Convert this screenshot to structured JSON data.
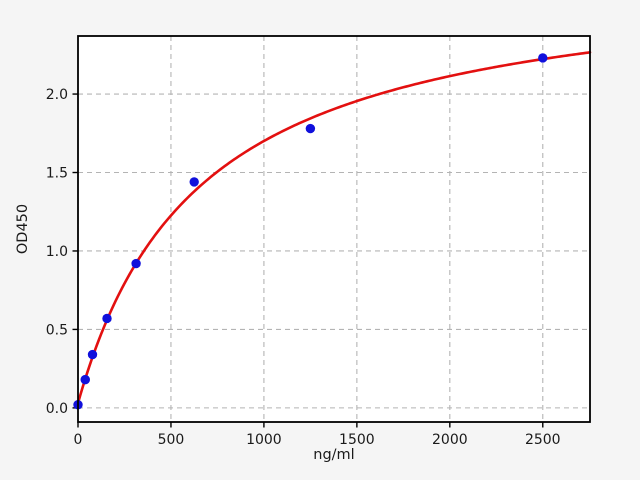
{
  "figure": {
    "background": "#f5f5f5",
    "plot_background": "#ffffff",
    "grid_color": "#b4b4b4",
    "spine_color": "#000000",
    "text_color": "#1a1a1a"
  },
  "chart_data": {
    "type": "scatter",
    "title": "",
    "xlabel": "ng/ml",
    "ylabel": "OD450",
    "points": {
      "x": [
        0,
        39,
        78,
        156,
        312.5,
        625,
        1250,
        2500
      ],
      "y": [
        0.02,
        0.18,
        0.34,
        0.57,
        0.92,
        1.44,
        1.78,
        2.23
      ]
    },
    "fit_line": {
      "model": "saturation-binding",
      "formula": "y = 0.03 + 2.77*x/(658 + x)",
      "y0": 0.03,
      "a": 2.77,
      "k": 658
    },
    "xlim": [
      0,
      2754
    ],
    "ylim": [
      -0.09,
      2.37
    ],
    "xticks": {
      "values": [
        0,
        500,
        1000,
        1500,
        2000,
        2500
      ],
      "labels": [
        "0",
        "500",
        "1000",
        "1500",
        "2000",
        "2500"
      ]
    },
    "yticks": {
      "values": [
        0,
        0.5,
        1.0,
        1.5,
        2.0
      ],
      "labels": [
        "0.0",
        "0.5",
        "1.0",
        "1.5",
        "2.0"
      ]
    },
    "grid": true,
    "legend": null,
    "marker_color": "#1010dc",
    "line_color": "#e31010"
  }
}
